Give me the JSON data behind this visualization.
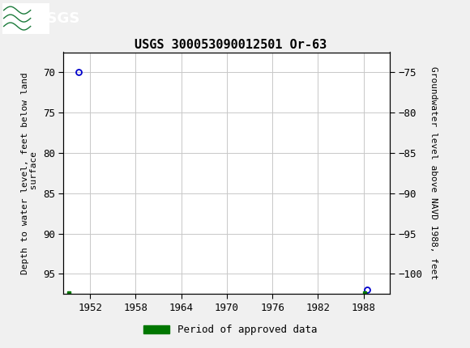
{
  "title": "USGS 300053090012501 Or-63",
  "ylabel_left": "Depth to water level, feet below land\n surface",
  "ylabel_right": "Groundwater level above NAVD 1988, feet",
  "header_color": "#1a7a3a",
  "background_color": "#f0f0f0",
  "plot_bg_color": "#ffffff",
  "grid_color": "#c8c8c8",
  "xlim": [
    1948.5,
    1991.5
  ],
  "ylim_left": [
    67.5,
    97.5
  ],
  "ylim_right": [
    -72.5,
    -102.5
  ],
  "xticks": [
    1952,
    1958,
    1964,
    1970,
    1976,
    1982,
    1988
  ],
  "yticks_left": [
    70,
    75,
    80,
    85,
    90,
    95
  ],
  "yticks_right": [
    -75,
    -80,
    -85,
    -90,
    -95,
    -100
  ],
  "circle_points": [
    {
      "x": 1950.5,
      "y_left": 70.0
    },
    {
      "x": 1988.5,
      "y_left": 97.0
    }
  ],
  "square_points": [
    {
      "x": 1949.2,
      "y_left": 97.4
    },
    {
      "x": 1988.2,
      "y_left": 97.4
    }
  ],
  "marker_color": "#0000cc",
  "legend_label": "Period of approved data",
  "legend_color": "#007700",
  "font_family": "monospace",
  "title_fontsize": 11,
  "tick_fontsize": 9,
  "label_fontsize": 8
}
